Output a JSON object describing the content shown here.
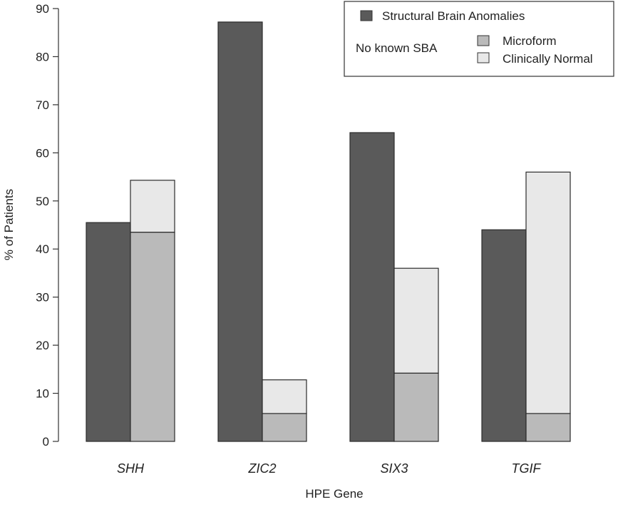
{
  "chart_data": {
    "type": "bar",
    "subtype": "grouped-with-stacked",
    "xlabel": "HPE Gene",
    "ylabel": "% of Patients",
    "ylim": [
      0,
      90
    ],
    "yticks": [
      "0",
      "10",
      "20",
      "30",
      "40",
      "50",
      "60",
      "70",
      "80",
      "90"
    ],
    "categories": [
      "SHH",
      "ZIC2",
      "SIX3",
      "TGIF"
    ],
    "series": [
      {
        "name": "Structural Brain Anomalies",
        "color": "#5a5a5a",
        "stack": "sba",
        "values": [
          45.5,
          87.2,
          64.2,
          44.0
        ]
      },
      {
        "name": "Microform",
        "color": "#bababa",
        "stack": "no-sba",
        "values": [
          43.5,
          5.8,
          14.2,
          5.8
        ]
      },
      {
        "name": "Clinically Normal",
        "color": "#e8e8e8",
        "stack": "no-sba",
        "values": [
          10.8,
          7.0,
          21.8,
          50.2
        ]
      }
    ],
    "legend": {
      "position": "top-right",
      "group_label": "No known SBA"
    },
    "grid": false
  }
}
